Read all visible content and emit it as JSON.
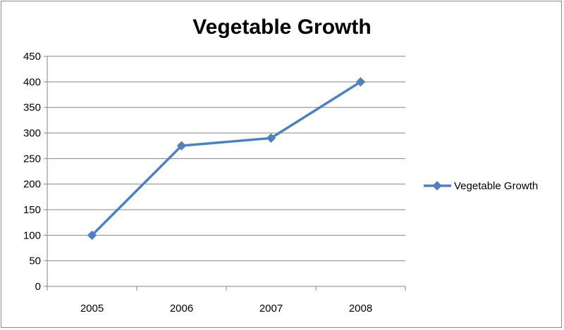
{
  "chart_data": {
    "type": "line",
    "title": "Vegetable Growth",
    "categories": [
      "2005",
      "2006",
      "2007",
      "2008"
    ],
    "series": [
      {
        "name": "Vegetable Growth",
        "values": [
          100,
          275,
          290,
          400
        ],
        "color": "#4f81bd",
        "marker": "diamond"
      }
    ],
    "ylim": [
      0,
      450
    ],
    "y_ticks": [
      0,
      50,
      100,
      150,
      200,
      250,
      300,
      350,
      400,
      450
    ],
    "grid": "horizontal",
    "legend_position": "right"
  }
}
